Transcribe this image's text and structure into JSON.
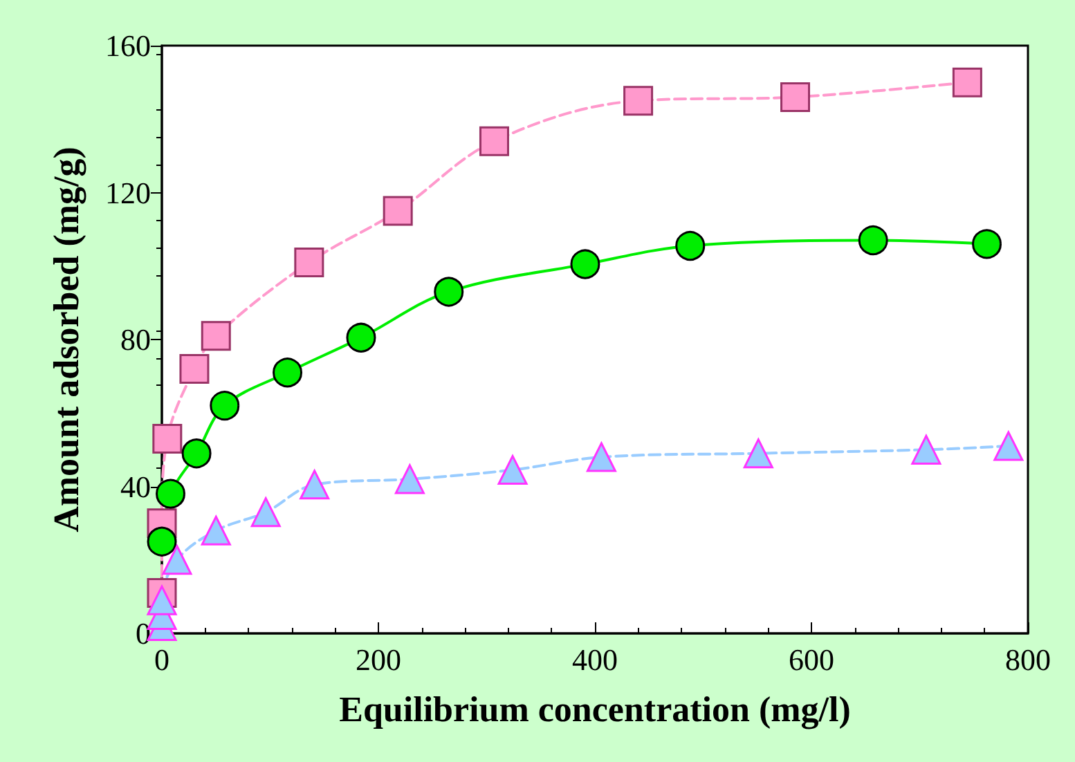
{
  "chart_data": {
    "type": "line",
    "xlabel": "Equilibrium concentration (mg/l)",
    "ylabel": "Amount adsorbed (mg/g)",
    "xlim": [
      0,
      800
    ],
    "xticks": [
      0,
      200,
      400,
      600,
      800
    ],
    "ylim": [
      0,
      160
    ],
    "yticks": [
      0,
      40,
      80,
      120,
      160
    ],
    "grid": false,
    "series": [
      {
        "color": "#ff99cc",
        "marker": "square",
        "line_style": "dashed",
        "x": [
          0,
          0,
          5,
          30,
          50,
          136,
          218,
          307,
          440,
          585,
          744
        ],
        "values": [
          11,
          30,
          53,
          72,
          81,
          101,
          115,
          134,
          145,
          146,
          150
        ]
      },
      {
        "color": "#00ee00",
        "marker": "circle",
        "line_style": "solid",
        "x": [
          0,
          8,
          32,
          58,
          116,
          184,
          265,
          391,
          488,
          657,
          762
        ],
        "values": [
          25,
          38,
          49,
          62,
          71,
          80.5,
          93,
          100.5,
          105.5,
          107,
          106
        ]
      },
      {
        "color": "#99ccff",
        "marker": "triangle",
        "line_style": "dashed",
        "x": [
          0,
          0,
          0,
          14,
          50,
          96,
          141,
          229,
          324,
          406,
          551,
          706,
          782
        ],
        "values": [
          2,
          5,
          9,
          20,
          28,
          33,
          40.5,
          42,
          44.5,
          48,
          49,
          50,
          51
        ]
      }
    ]
  }
}
